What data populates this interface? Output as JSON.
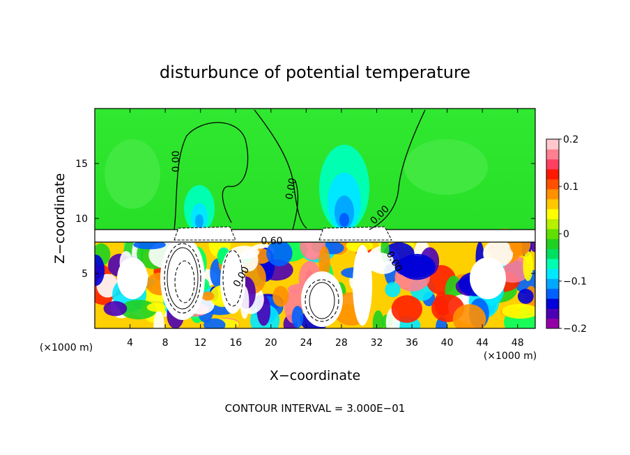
{
  "chart_data": {
    "type": "heatmap",
    "title": "disturbunce of potential temperature",
    "xlabel": "X−coordinate",
    "ylabel": "Z−coordinate",
    "x_unit_left": "(×1000 m)",
    "x_unit_right": "(×1000 m)",
    "footer": "CONTOUR INTERVAL = 3.000E−01",
    "xlim": [
      0,
      50
    ],
    "ylim": [
      0,
      20
    ],
    "x_ticks": [
      4,
      8,
      12,
      16,
      20,
      24,
      28,
      32,
      36,
      40,
      44,
      48
    ],
    "y_ticks": [
      5,
      10,
      15
    ],
    "colorbar": {
      "range": [
        -0.2,
        0.2
      ],
      "tick_values": [
        0.2,
        0.1,
        0,
        -0.1,
        -0.2
      ],
      "tick_labels": [
        "0.2",
        "0.1",
        "0",
        "−0.1",
        "−0.2"
      ],
      "colors": [
        "#9400a8",
        "#4b00b4",
        "#0000d8",
        "#0060ff",
        "#00a8ff",
        "#00e8ff",
        "#00ffb0",
        "#00e060",
        "#20d020",
        "#60e000",
        "#b8f000",
        "#ffff00",
        "#ffc800",
        "#ff9000",
        "#ff5000",
        "#ff1800",
        "#ff4060",
        "#ff8090",
        "#ffc8cc"
      ]
    },
    "contour_labels": [
      "0.00",
      "0.00",
      "0.00",
      "0.60",
      "0.00",
      "0.00"
    ],
    "background_color": "#20e020",
    "layer_color": "#ffffff"
  }
}
